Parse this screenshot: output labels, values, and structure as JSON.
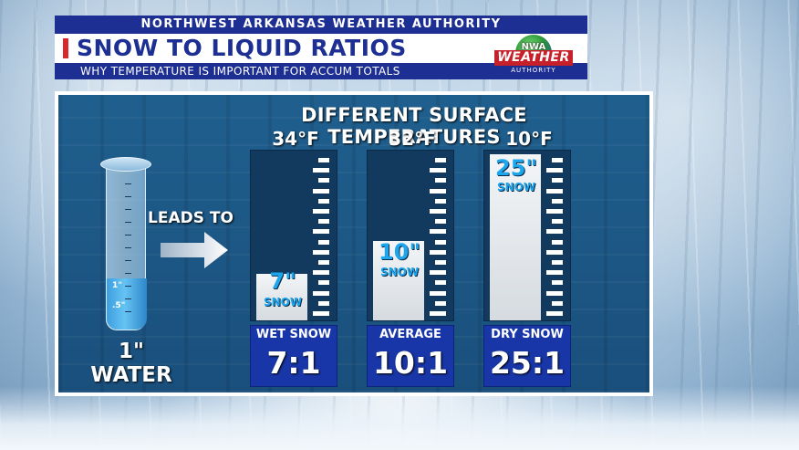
{
  "header": {
    "org": "NORTHWEST ARKANSAS WEATHER AUTHORITY",
    "title": "SNOW TO LIQUID RATIOS",
    "subtitle": "WHY TEMPERATURE IS IMPORTANT FOR ACCUM TOTALS"
  },
  "logo": {
    "nwa": "NWA",
    "weather": "WEATHER",
    "authority": "AUTHORITY"
  },
  "graphic": {
    "heading": "DIFFERENT SURFACE TEMPERATURES",
    "leads_to": "LEADS TO",
    "water_amount": "1\"",
    "water_word": "WATER",
    "cylinder_marks": [
      "1\"",
      ".5\""
    ],
    "columns": [
      {
        "temp": "34°F",
        "snow_depth": "7\"",
        "snow_word": "SNOW",
        "type": "WET SNOW",
        "ratio": "7:1",
        "fill_fraction": 0.28
      },
      {
        "temp": "32°F",
        "snow_depth": "10\"",
        "snow_word": "SNOW",
        "type": "AVERAGE",
        "ratio": "10:1",
        "fill_fraction": 0.48
      },
      {
        "temp": "10°F",
        "snow_depth": "25\"",
        "snow_word": "SNOW",
        "type": "DRY SNOW",
        "ratio": "25:1",
        "fill_fraction": 1.0
      }
    ]
  },
  "colors": {
    "header_blue": "#1d2f93",
    "accent_red": "#d8262d",
    "snow_label_blue": "#1ca6ee",
    "ratio_box_blue": "#1836a8"
  }
}
